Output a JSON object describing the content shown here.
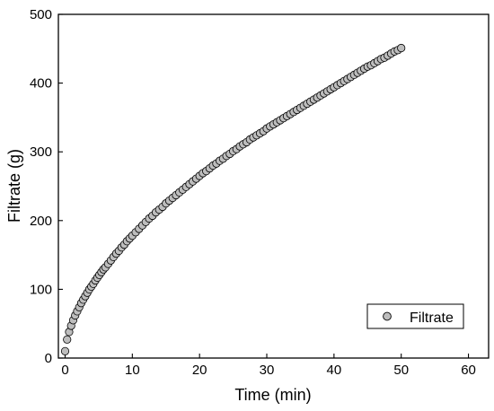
{
  "chart_data": {
    "type": "scatter",
    "title": "",
    "xlabel": "Time (min)",
    "ylabel": "Filtrate (g)",
    "xlim": [
      -1,
      63
    ],
    "ylim": [
      0,
      500
    ],
    "xticks": [
      0,
      10,
      20,
      30,
      40,
      50,
      60
    ],
    "yticks": [
      0,
      100,
      200,
      300,
      400,
      500
    ],
    "x_tick_labels": [
      "0",
      "10",
      "20",
      "30",
      "40",
      "50",
      "60"
    ],
    "y_tick_labels": [
      "0",
      "100",
      "200",
      "300",
      "400",
      "500"
    ],
    "grid": false,
    "legend": {
      "position": "bottom-right",
      "entries": [
        "Filtrate"
      ]
    },
    "series": [
      {
        "name": "Filtrate",
        "marker": "open-circle",
        "color": "#000000",
        "fill": "#bdbdbd",
        "points": [
          [
            0.0,
            10
          ],
          [
            0.3,
            27
          ],
          [
            0.6,
            38
          ],
          [
            0.9,
            47
          ],
          [
            1.2,
            55
          ],
          [
            1.5,
            62
          ],
          [
            1.8,
            68
          ],
          [
            2.1,
            74
          ],
          [
            2.4,
            80
          ],
          [
            2.7,
            85
          ],
          [
            3.0,
            90
          ],
          [
            3.3,
            95
          ],
          [
            3.6,
            100
          ],
          [
            3.9,
            104
          ],
          [
            4.2,
            108
          ],
          [
            4.5,
            113
          ],
          [
            4.8,
            117
          ],
          [
            5.1,
            121
          ],
          [
            5.4,
            125
          ],
          [
            5.7,
            129
          ],
          [
            6.0,
            132
          ],
          [
            6.4,
            137
          ],
          [
            6.8,
            142
          ],
          [
            7.2,
            147
          ],
          [
            7.6,
            152
          ],
          [
            8.0,
            156
          ],
          [
            8.4,
            161
          ],
          [
            8.8,
            165
          ],
          [
            9.2,
            170
          ],
          [
            9.6,
            174
          ],
          [
            10.0,
            178
          ],
          [
            10.5,
            183
          ],
          [
            11.0,
            188
          ],
          [
            11.5,
            193
          ],
          [
            12.0,
            198
          ],
          [
            12.5,
            203
          ],
          [
            13.0,
            207
          ],
          [
            13.5,
            212
          ],
          [
            14.0,
            216
          ],
          [
            14.5,
            220
          ],
          [
            15.0,
            225
          ],
          [
            15.5,
            229
          ],
          [
            16.0,
            233
          ],
          [
            16.5,
            237
          ],
          [
            17.0,
            241
          ],
          [
            17.5,
            245
          ],
          [
            18.0,
            249
          ],
          [
            18.5,
            253
          ],
          [
            19.0,
            257
          ],
          [
            19.5,
            261
          ],
          [
            20.0,
            265
          ],
          [
            20.5,
            269
          ],
          [
            21.0,
            272
          ],
          [
            21.5,
            276
          ],
          [
            22.0,
            280
          ],
          [
            22.5,
            283
          ],
          [
            23.0,
            287
          ],
          [
            23.5,
            290
          ],
          [
            24.0,
            294
          ],
          [
            24.5,
            297
          ],
          [
            25.0,
            301
          ],
          [
            25.5,
            304
          ],
          [
            26.0,
            308
          ],
          [
            26.5,
            311
          ],
          [
            27.0,
            314
          ],
          [
            27.5,
            318
          ],
          [
            28.0,
            321
          ],
          [
            28.5,
            324
          ],
          [
            29.0,
            327
          ],
          [
            29.5,
            330
          ],
          [
            30.0,
            334
          ],
          [
            30.5,
            337
          ],
          [
            31.0,
            340
          ],
          [
            31.5,
            343
          ],
          [
            32.0,
            346
          ],
          [
            32.5,
            349
          ],
          [
            33.0,
            352
          ],
          [
            33.5,
            355
          ],
          [
            34.0,
            358
          ],
          [
            34.5,
            361
          ],
          [
            35.0,
            364
          ],
          [
            35.5,
            367
          ],
          [
            36.0,
            370
          ],
          [
            36.5,
            373
          ],
          [
            37.0,
            376
          ],
          [
            37.5,
            379
          ],
          [
            38.0,
            382
          ],
          [
            38.5,
            385
          ],
          [
            39.0,
            388
          ],
          [
            39.5,
            391
          ],
          [
            40.0,
            394
          ],
          [
            40.5,
            397
          ],
          [
            41.0,
            400
          ],
          [
            41.5,
            403
          ],
          [
            42.0,
            406
          ],
          [
            42.5,
            409
          ],
          [
            43.0,
            412
          ],
          [
            43.5,
            415
          ],
          [
            44.0,
            418
          ],
          [
            44.5,
            421
          ],
          [
            45.0,
            424
          ],
          [
            45.5,
            426
          ],
          [
            46.0,
            429
          ],
          [
            46.5,
            432
          ],
          [
            47.0,
            435
          ],
          [
            47.5,
            437
          ],
          [
            48.0,
            440
          ],
          [
            48.5,
            443
          ],
          [
            49.0,
            446
          ],
          [
            49.5,
            448
          ],
          [
            50.0,
            451
          ]
        ]
      }
    ]
  }
}
